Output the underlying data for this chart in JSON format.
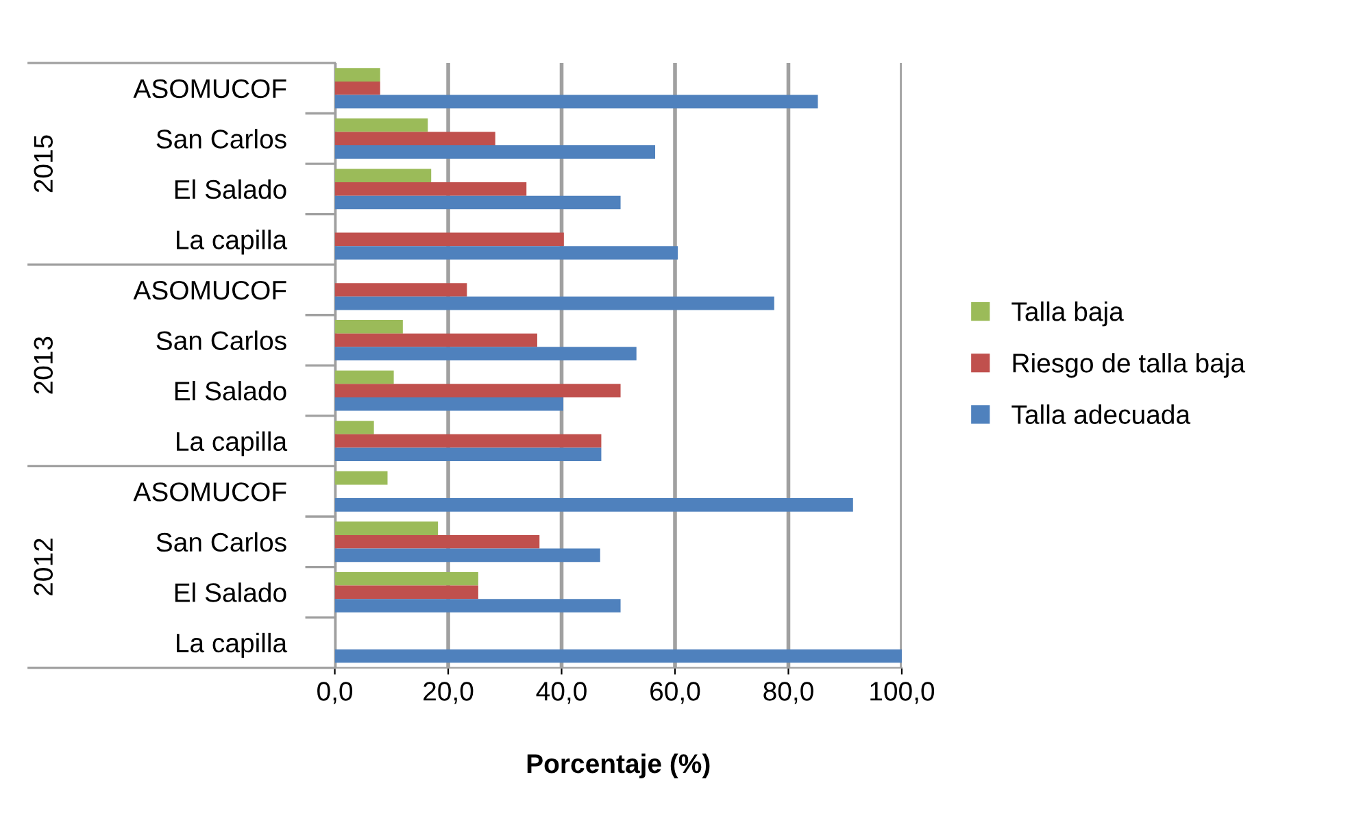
{
  "chart_data": {
    "type": "bar",
    "orientation": "horizontal",
    "xlabel": "Porcentaje (%)",
    "categories": [
      "ASOMUCOF",
      "San Carlos",
      "El Salado",
      "La capilla",
      "ASOMUCOF",
      "San Carlos",
      "El Salado",
      "La capilla",
      "ASOMUCOF",
      "San Carlos",
      "El Salado",
      "La capilla"
    ],
    "annotations": [
      "2015",
      "2013",
      "2012"
    ],
    "series": [
      {
        "name": "Talla baja",
        "color": "#9bbb59",
        "values": [
          8,
          16.4,
          17,
          0,
          0,
          12,
          10.4,
          6.9,
          9.3,
          18.2,
          25.3,
          0
        ]
      },
      {
        "name": "Riesgo de talla baja",
        "color": "#c0504d",
        "values": [
          8,
          28.3,
          33.8,
          40.4,
          23.3,
          35.7,
          50.4,
          47,
          0,
          36.1,
          25.3,
          0
        ]
      },
      {
        "name": "Talla adecuada",
        "color": "#4f81bd",
        "values": [
          85.2,
          56.5,
          50.4,
          60.5,
          77.5,
          53.2,
          40.3,
          47,
          91.4,
          46.8,
          50.4,
          100
        ]
      }
    ],
    "xlim": [
      0,
      100
    ],
    "xticks": [
      {
        "value": 0,
        "label": "0,0"
      },
      {
        "value": 20,
        "label": "20,0"
      },
      {
        "value": 40,
        "label": "40,0"
      },
      {
        "value": 60,
        "label": "60,0"
      },
      {
        "value": 80,
        "label": "80,0"
      },
      {
        "value": 100,
        "label": "100,0"
      }
    ],
    "grid": "x",
    "legend": "right"
  }
}
